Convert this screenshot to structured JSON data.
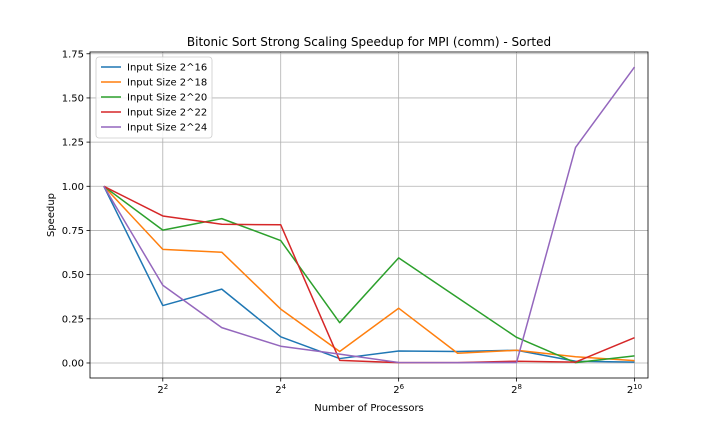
{
  "chart_data": {
    "type": "line",
    "title": "Bitonic Sort Strong Scaling Speedup for MPI (comm) - Sorted",
    "xlabel": "Number of Processors",
    "ylabel": "Speedup",
    "x_scale": "log2",
    "x": [
      2,
      4,
      8,
      16,
      32,
      64,
      128,
      256,
      512,
      1024
    ],
    "xlim": [
      1.7,
      1200
    ],
    "ylim": [
      -0.085,
      1.76
    ],
    "x_ticks": [
      {
        "value": 4,
        "base": "2",
        "exp": "2"
      },
      {
        "value": 16,
        "base": "2",
        "exp": "4"
      },
      {
        "value": 64,
        "base": "2",
        "exp": "6"
      },
      {
        "value": 256,
        "base": "2",
        "exp": "8"
      },
      {
        "value": 1024,
        "base": "2",
        "exp": "10"
      }
    ],
    "y_ticks": [
      {
        "value": 0.0,
        "label": "0.00"
      },
      {
        "value": 0.25,
        "label": "0.25"
      },
      {
        "value": 0.5,
        "label": "0.50"
      },
      {
        "value": 0.75,
        "label": "0.75"
      },
      {
        "value": 1.0,
        "label": "1.00"
      },
      {
        "value": 1.25,
        "label": "1.25"
      },
      {
        "value": 1.5,
        "label": "1.50"
      },
      {
        "value": 1.75,
        "label": "1.75"
      }
    ],
    "grid": true,
    "legend_position": "top-left",
    "series": [
      {
        "name": "Input Size 2^16",
        "color": "#1f77b4",
        "values": [
          1.0,
          0.325,
          0.418,
          0.148,
          0.025,
          0.068,
          0.065,
          0.072,
          0.01,
          0.005
        ]
      },
      {
        "name": "Input Size 2^18",
        "color": "#ff7f0e",
        "values": [
          1.0,
          0.643,
          0.627,
          0.305,
          0.065,
          0.31,
          0.055,
          0.072,
          0.035,
          0.013
        ]
      },
      {
        "name": "Input Size 2^20",
        "color": "#2ca02c",
        "values": [
          1.0,
          0.752,
          0.817,
          0.693,
          0.228,
          0.595,
          0.37,
          0.145,
          0.002,
          0.04
        ]
      },
      {
        "name": "Input Size 2^22",
        "color": "#d62728",
        "values": [
          1.0,
          0.832,
          0.785,
          0.782,
          0.015,
          0.002,
          0.002,
          0.01,
          0.005,
          0.143
        ]
      },
      {
        "name": "Input Size 2^24",
        "color": "#9467bd",
        "values": [
          1.0,
          0.44,
          0.2,
          0.095,
          0.05,
          0.003,
          0.002,
          0.003,
          1.22,
          1.675
        ]
      }
    ]
  }
}
